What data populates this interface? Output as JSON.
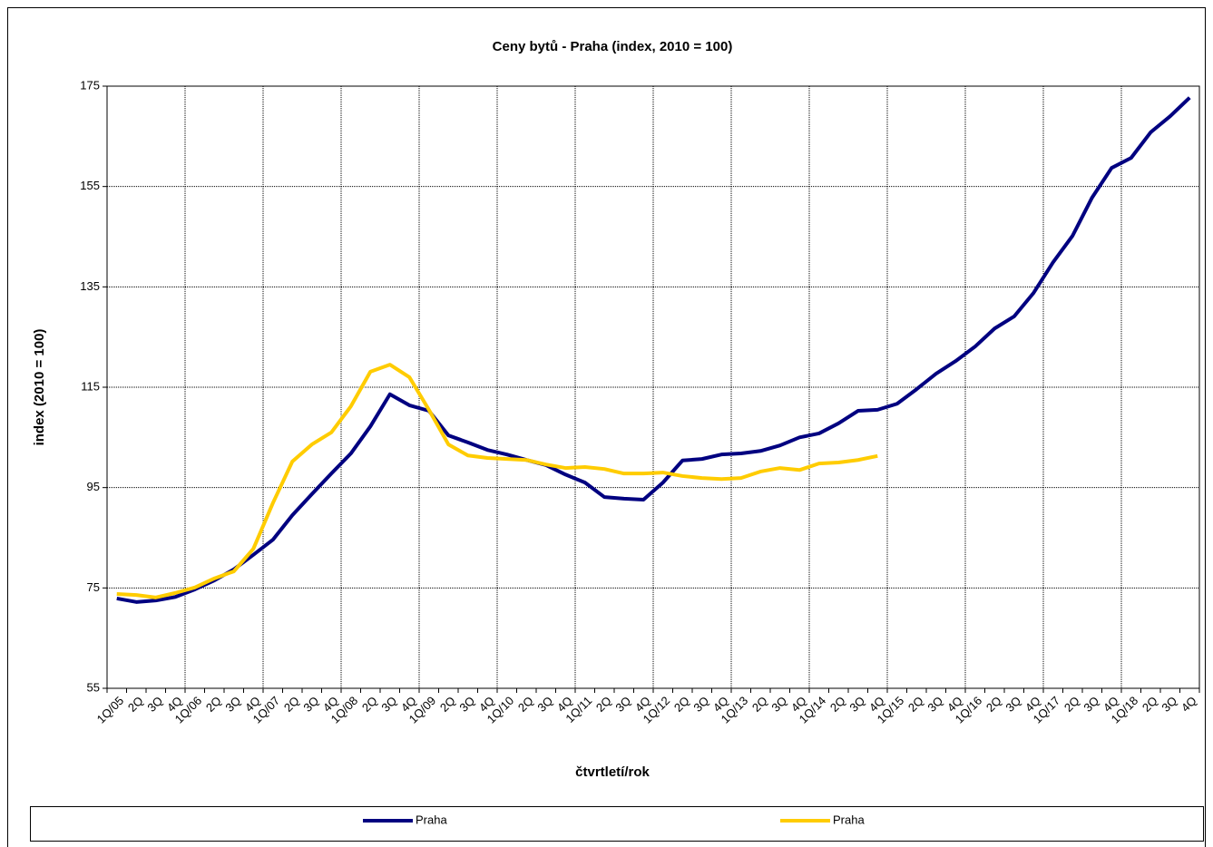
{
  "chart_data": {
    "type": "line",
    "title": "Ceny bytů - Praha (index, 2010 = 100)",
    "y_label": "index (2010 = 100)",
    "x_label": "čtvrtletí/rok",
    "categories": [
      "1Q/05",
      "2Q",
      "3Q",
      "4Q",
      "1Q/06",
      "2Q",
      "3Q",
      "4Q",
      "1Q/07",
      "2Q",
      "3Q",
      "4Q",
      "1Q/08",
      "2Q",
      "3Q",
      "4Q",
      "1Q/09",
      "2Q",
      "3Q",
      "4Q",
      "1Q/10",
      "2Q",
      "3Q",
      "4Q",
      "1Q/11",
      "2Q",
      "3Q",
      "4Q",
      "1Q/12",
      "2Q",
      "3Q",
      "4Q",
      "1Q/13",
      "2Q",
      "3Q",
      "4Q",
      "1Q/14",
      "2Q",
      "3Q",
      "4Q",
      "1Q/15",
      "2Q",
      "3Q",
      "4Q",
      "1Q/16",
      "2Q",
      "3Q",
      "4Q",
      "1Q/17",
      "2Q",
      "3Q",
      "4Q",
      "1Q/18",
      "2Q",
      "3Q",
      "4Q"
    ],
    "series": [
      {
        "name": "Praha",
        "color": "#000080",
        "values": [
          72.9,
          72.2,
          72.5,
          73.2,
          74.7,
          76.5,
          78.7,
          81.6,
          84.6,
          89.5,
          93.7,
          97.8,
          101.8,
          107.2,
          113.6,
          111.4,
          110.3,
          105.4,
          104,
          102.5,
          101.6,
          100.5,
          99.5,
          97.6,
          96,
          93.1,
          92.8,
          92.6,
          96,
          100.4,
          100.7,
          101.6,
          101.8,
          102.3,
          103.4,
          105,
          105.8,
          107.8,
          110.3,
          110.5,
          111.7,
          114.6,
          117.7,
          120.2,
          123.1,
          126.7,
          129.1,
          133.8,
          139.9,
          145.2,
          152.8,
          158.7,
          160.7,
          165.8,
          169,
          172.7
        ]
      },
      {
        "name": "Praha",
        "color": "#ffcc00",
        "values": [
          73.8,
          73.6,
          73.1,
          74,
          75.1,
          76.9,
          78.3,
          82.8,
          91.9,
          100.2,
          103.6,
          106,
          111.2,
          118.1,
          119.5,
          117,
          110.5,
          103.6,
          101.4,
          100.9,
          100.7,
          100.5,
          99.6,
          98.9,
          99.1,
          98.7,
          97.8,
          97.8,
          98,
          97.3,
          96.9,
          96.7,
          96.9,
          98.2,
          98.9,
          98.5,
          99.8,
          100,
          100.5,
          101.3,
          null,
          null,
          null,
          null,
          null,
          null,
          null,
          null,
          null,
          null,
          null,
          null,
          null,
          null,
          null,
          null
        ]
      }
    ],
    "ylim": [
      55,
      175
    ],
    "yticks": [
      55,
      75,
      95,
      115,
      135,
      155,
      175
    ],
    "grid": true,
    "legend": "bottom"
  }
}
